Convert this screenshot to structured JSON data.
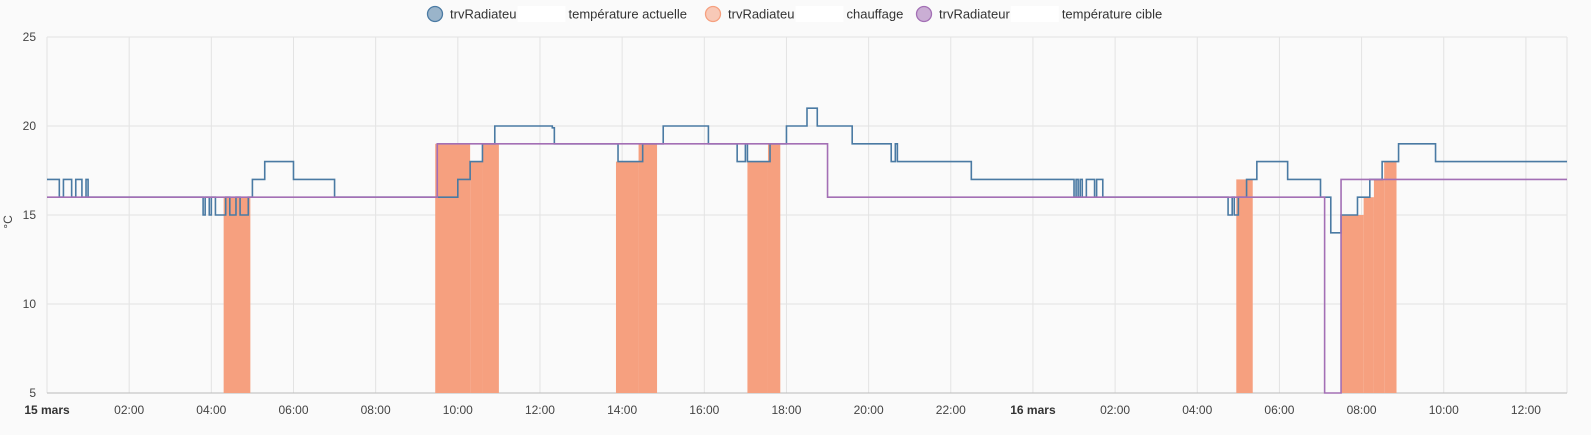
{
  "chart_data": {
    "type": "line",
    "title": "",
    "xlabel": "",
    "ylabel": "°C",
    "ylim": [
      5,
      25
    ],
    "yticks": [
      5,
      10,
      15,
      20,
      25
    ],
    "xlim": [
      "15 mars 00:00",
      "16 mars 13:00"
    ],
    "x_unit": "hours since 15 mars 00:00",
    "xlim_hours": [
      0,
      37
    ],
    "xticks": [
      {
        "h": 0,
        "label": "15 mars",
        "bold": true
      },
      {
        "h": 2,
        "label": "02:00"
      },
      {
        "h": 4,
        "label": "04:00"
      },
      {
        "h": 6,
        "label": "06:00"
      },
      {
        "h": 8,
        "label": "08:00"
      },
      {
        "h": 10,
        "label": "10:00"
      },
      {
        "h": 12,
        "label": "12:00"
      },
      {
        "h": 14,
        "label": "14:00"
      },
      {
        "h": 16,
        "label": "16:00"
      },
      {
        "h": 18,
        "label": "18:00"
      },
      {
        "h": 20,
        "label": "20:00"
      },
      {
        "h": 22,
        "label": "22:00"
      },
      {
        "h": 24,
        "label": "16 mars",
        "bold": true
      },
      {
        "h": 26,
        "label": "02:00"
      },
      {
        "h": 28,
        "label": "04:00"
      },
      {
        "h": 30,
        "label": "06:00"
      },
      {
        "h": 32,
        "label": "08:00"
      },
      {
        "h": 34,
        "label": "10:00"
      },
      {
        "h": 36,
        "label": "12:00"
      }
    ],
    "grid": true,
    "legend_position": "top-center",
    "legend": [
      {
        "label_prefix": "trvRadiateu",
        "label_suffix": "température actuelle",
        "color": "#4a7aa3"
      },
      {
        "label_prefix": "trvRadiateu",
        "label_suffix": "chauffage",
        "color": "#f6a07f"
      },
      {
        "label_prefix": "trvRadiateur",
        "label_suffix": "température cible",
        "color": "#a36fb5"
      }
    ],
    "series": [
      {
        "name": "température actuelle",
        "style": "step",
        "color": "#4a7aa3",
        "points": [
          [
            0,
            17
          ],
          [
            0.3,
            16
          ],
          [
            0.4,
            17
          ],
          [
            0.6,
            16
          ],
          [
            0.7,
            17
          ],
          [
            0.85,
            16
          ],
          [
            0.95,
            17
          ],
          [
            1.0,
            16
          ],
          [
            3.8,
            15
          ],
          [
            3.85,
            16
          ],
          [
            3.95,
            15
          ],
          [
            4.0,
            16
          ],
          [
            4.1,
            15
          ],
          [
            4.35,
            16
          ],
          [
            4.45,
            15
          ],
          [
            4.6,
            16
          ],
          [
            4.7,
            15
          ],
          [
            4.9,
            16
          ],
          [
            5.0,
            17
          ],
          [
            5.3,
            18
          ],
          [
            6.0,
            17
          ],
          [
            7.0,
            16
          ],
          [
            10.0,
            17
          ],
          [
            10.3,
            18
          ],
          [
            10.6,
            19
          ],
          [
            10.9,
            20
          ],
          [
            12.3,
            19.9
          ],
          [
            12.35,
            19
          ],
          [
            13.9,
            18
          ],
          [
            14.5,
            19
          ],
          [
            15.0,
            20
          ],
          [
            16.1,
            19
          ],
          [
            16.8,
            18
          ],
          [
            17.0,
            19
          ],
          [
            17.05,
            18
          ],
          [
            17.6,
            19
          ],
          [
            18.0,
            20
          ],
          [
            18.5,
            21
          ],
          [
            18.75,
            20
          ],
          [
            19.6,
            19
          ],
          [
            20.55,
            18
          ],
          [
            20.65,
            19
          ],
          [
            20.7,
            18
          ],
          [
            22.5,
            17
          ],
          [
            25.0,
            16
          ],
          [
            25.05,
            17
          ],
          [
            25.1,
            16
          ],
          [
            25.15,
            17
          ],
          [
            25.2,
            16
          ],
          [
            25.3,
            17
          ],
          [
            25.5,
            16
          ],
          [
            25.55,
            17
          ],
          [
            25.7,
            16
          ],
          [
            28.75,
            15
          ],
          [
            28.85,
            16
          ],
          [
            28.9,
            15
          ],
          [
            29.0,
            16
          ],
          [
            29.2,
            17
          ],
          [
            29.45,
            18
          ],
          [
            30.2,
            17
          ],
          [
            31.0,
            16
          ],
          [
            31.25,
            14
          ],
          [
            31.5,
            15
          ],
          [
            31.9,
            16
          ],
          [
            32.2,
            17
          ],
          [
            32.5,
            18
          ],
          [
            32.9,
            19
          ],
          [
            33.8,
            18
          ],
          [
            37,
            18
          ]
        ]
      },
      {
        "name": "chauffage",
        "style": "area-blocks",
        "color": "#f6a07f",
        "top_value": 18,
        "intervals": [
          [
            4.3,
            4.95,
            16
          ],
          [
            9.45,
            10.3,
            19
          ],
          [
            10.3,
            10.6,
            18
          ],
          [
            10.6,
            11.0,
            19
          ],
          [
            13.85,
            14.4,
            18
          ],
          [
            14.4,
            14.85,
            19
          ],
          [
            17.05,
            17.55,
            18
          ],
          [
            17.55,
            17.85,
            19
          ],
          [
            28.95,
            29.35,
            17
          ],
          [
            31.5,
            32.05,
            15
          ],
          [
            32.05,
            32.3,
            16
          ],
          [
            32.3,
            32.55,
            17
          ],
          [
            32.55,
            32.85,
            18
          ]
        ]
      },
      {
        "name": "température cible",
        "style": "step",
        "color": "#a36fb5",
        "points": [
          [
            0,
            16
          ],
          [
            9.5,
            19
          ],
          [
            19.0,
            16
          ],
          [
            31.1,
            5
          ],
          [
            31.5,
            17
          ],
          [
            37,
            17
          ]
        ]
      }
    ]
  }
}
